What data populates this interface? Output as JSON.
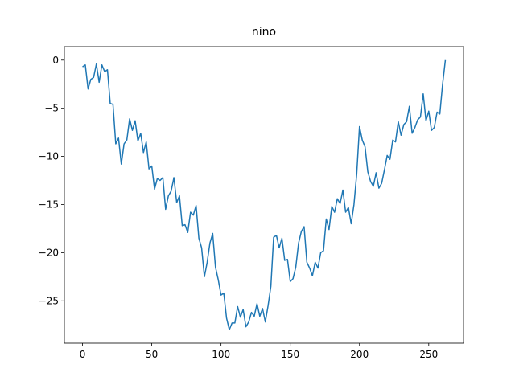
{
  "chart_data": {
    "type": "line",
    "title": "nino",
    "x": [
      0,
      2,
      4,
      6,
      8,
      10,
      12,
      14,
      16,
      18,
      20,
      22,
      24,
      26,
      28,
      30,
      32,
      34,
      36,
      38,
      40,
      42,
      44,
      46,
      48,
      50,
      52,
      54,
      56,
      58,
      60,
      62,
      64,
      66,
      68,
      70,
      72,
      74,
      76,
      78,
      80,
      82,
      84,
      86,
      88,
      90,
      92,
      94,
      96,
      98,
      100,
      102,
      104,
      106,
      108,
      110,
      112,
      114,
      116,
      118,
      120,
      122,
      124,
      126,
      128,
      130,
      132,
      134,
      136,
      138,
      140,
      142,
      144,
      146,
      148,
      150,
      152,
      154,
      156,
      158,
      160,
      162,
      164,
      166,
      168,
      170,
      172,
      174,
      176,
      178,
      180,
      182,
      184,
      186,
      188,
      190,
      192,
      194,
      196,
      198,
      200,
      202,
      204,
      206,
      208,
      210,
      212,
      214,
      216,
      218,
      220,
      222,
      224,
      226,
      228,
      230,
      232,
      234,
      236,
      238,
      240,
      242,
      244,
      246,
      248,
      250,
      252,
      254,
      256,
      258,
      260,
      262
    ],
    "series": [
      {
        "name": "nino",
        "color": "#1f77b4",
        "values": [
          -0.7,
          -0.5,
          -3,
          -2,
          -1.8,
          -0.4,
          -2.3,
          -0.5,
          -1.2,
          -1,
          -4.5,
          -4.6,
          -8.7,
          -8.1,
          -10.8,
          -8.7,
          -8.3,
          -6.1,
          -7.3,
          -6.3,
          -8.4,
          -7.6,
          -9.6,
          -8.5,
          -11.3,
          -11,
          -13.4,
          -12.3,
          -12.5,
          -12.2,
          -15.5,
          -14.1,
          -13.6,
          -12.2,
          -14.8,
          -14.1,
          -17.2,
          -17.1,
          -17.9,
          -15.8,
          -16.1,
          -15.1,
          -18.5,
          -19.5,
          -22.5,
          -21,
          -19,
          -18,
          -21.5,
          -22.8,
          -24.4,
          -24.2,
          -26.8,
          -28,
          -27.3,
          -27.3,
          -25.6,
          -26.7,
          -25.9,
          -27.7,
          -27.2,
          -26.2,
          -26.6,
          -25.3,
          -26.6,
          -25.8,
          -27.2,
          -25.5,
          -23.5,
          -18.4,
          -18.2,
          -19.5,
          -18.5,
          -20.8,
          -20.7,
          -23,
          -22.7,
          -21.5,
          -19,
          -17.8,
          -17.3,
          -21,
          -21.6,
          -22.4,
          -21,
          -21.6,
          -20,
          -19.8,
          -16.5,
          -17.6,
          -15.2,
          -15.8,
          -14.4,
          -14.9,
          -13.5,
          -15.8,
          -15.3,
          -17,
          -15,
          -11.8,
          -6.9,
          -8.3,
          -9,
          -11.6,
          -12.6,
          -13.1,
          -11.7,
          -13.3,
          -12.8,
          -11.4,
          -9.9,
          -10.3,
          -8.3,
          -8.5,
          -6.4,
          -7.8,
          -6.7,
          -6.4,
          -4.8,
          -7.6,
          -7,
          -6.2,
          -5.9,
          -3.5,
          -6.3,
          -5.3,
          -7.3,
          -7,
          -5.4,
          -5.6,
          -2.5,
          0
        ]
      }
    ],
    "xlim": [
      -13.1,
      275.1
    ],
    "ylim": [
      -29.4,
      1.4
    ],
    "xticks": [
      0,
      50,
      100,
      150,
      200,
      250
    ],
    "yticks": [
      0,
      {
        "value": -5,
        "label": "−5"
      },
      {
        "value": -10,
        "label": "−10"
      },
      {
        "value": -15,
        "label": "−15"
      },
      {
        "value": -20,
        "label": "−20"
      },
      {
        "value": -25,
        "label": "−25"
      }
    ],
    "grid": false
  }
}
